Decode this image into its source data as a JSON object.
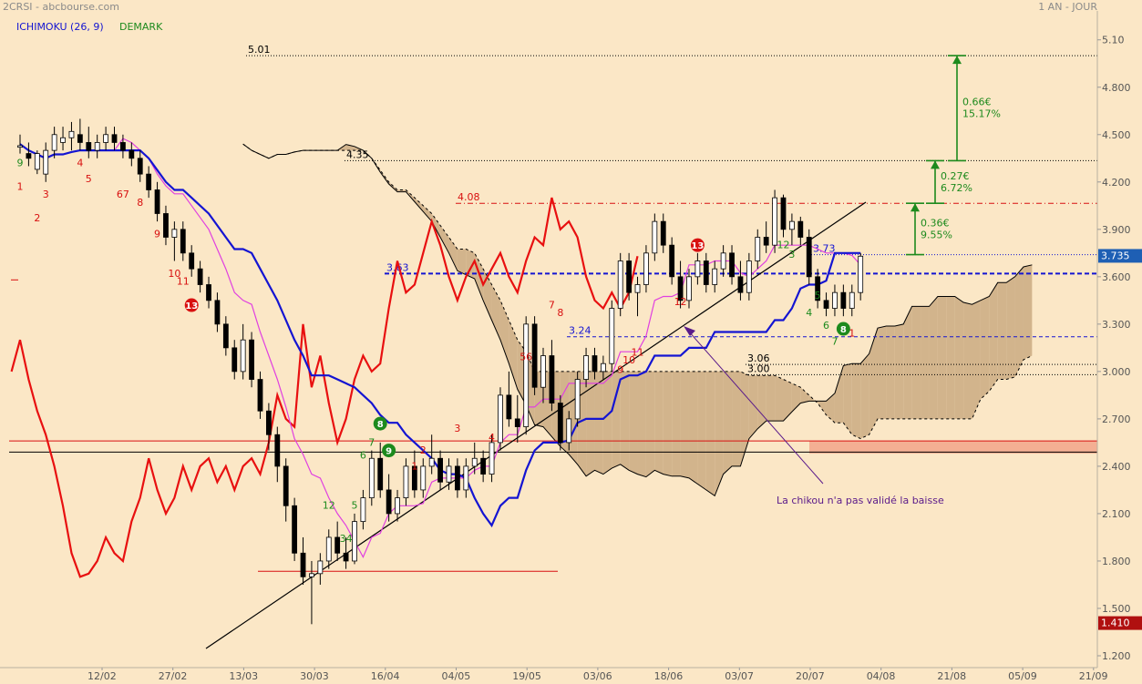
{
  "header": {
    "symbol": "2CRSI - abcbourse.com",
    "period": "1 AN - JOUR"
  },
  "indicators": {
    "ichimoku": "ICHIMOKU (26, 9)",
    "demark": "DEMARK"
  },
  "colors": {
    "background": "#fbe7c6",
    "cloud": "#d2b48c",
    "tenkan": "#e040e0",
    "kijun": "#1414d2",
    "chikou": "#e81010",
    "demark_buy": "#1d8a1d",
    "demark_sell": "#d81010",
    "last_price_tag": "#1e5fb4",
    "low_price_tag": "#b01010",
    "resistance_zone": "#f3a88d"
  },
  "chart_data": {
    "type": "candlestick",
    "title": "2CRSI",
    "source": "abcbourse.com",
    "period": "1 AN - JOUR",
    "ylim": [
      1.2,
      5.25
    ],
    "y_ticks": [
      "5.10",
      "4.800",
      "4.500",
      "4.200",
      "3.900",
      "3.600",
      "3.300",
      "3.000",
      "2.700",
      "2.400",
      "2.100",
      "1.800",
      "1.500",
      "1.200"
    ],
    "x_ticks": [
      "12/02",
      "27/02",
      "13/03",
      "30/03",
      "16/04",
      "04/05",
      "19/05",
      "03/06",
      "18/06",
      "03/07",
      "20/07",
      "04/08",
      "21/08",
      "05/09",
      "21/09"
    ],
    "last_price": "3.735",
    "low_price": "1.410",
    "levels": [
      {
        "label": "5.01",
        "value": 5.0
      },
      {
        "label": "4.35",
        "value": 4.335
      },
      {
        "label": "4.08",
        "value": 4.065
      },
      {
        "label": "3.73",
        "value": 3.74
      },
      {
        "label": "3.63",
        "value": 3.62
      },
      {
        "label": "3.24",
        "value": 3.22
      },
      {
        "label": "3.06",
        "value": 3.045
      },
      {
        "label": "3.00",
        "value": 2.98
      }
    ],
    "targets": [
      {
        "amount": "0.36€",
        "percent": "9.55%",
        "from": 3.74,
        "to": 4.065
      },
      {
        "amount": "0.27€",
        "percent": "6.72%",
        "from": 4.065,
        "to": 4.335
      },
      {
        "amount": "0.66€",
        "percent": "15.17%",
        "from": 4.335,
        "to": 5.0
      }
    ],
    "annotation": "La chikou n'a pas validé la baisse",
    "ohlc": [
      [
        4.42,
        4.5,
        4.38,
        4.43
      ],
      [
        4.38,
        4.45,
        4.3,
        4.35
      ],
      [
        4.28,
        4.4,
        4.25,
        4.38
      ],
      [
        4.25,
        4.45,
        4.2,
        4.4
      ],
      [
        4.4,
        4.55,
        4.35,
        4.5
      ],
      [
        4.45,
        4.55,
        4.4,
        4.48
      ],
      [
        4.48,
        4.58,
        4.4,
        4.52
      ],
      [
        4.5,
        4.6,
        4.4,
        4.45
      ],
      [
        4.45,
        4.55,
        4.35,
        4.4
      ],
      [
        4.4,
        4.5,
        4.35,
        4.45
      ],
      [
        4.45,
        4.55,
        4.4,
        4.5
      ],
      [
        4.5,
        4.55,
        4.4,
        4.45
      ],
      [
        4.45,
        4.5,
        4.35,
        4.4
      ],
      [
        4.4,
        4.45,
        4.3,
        4.35
      ],
      [
        4.35,
        4.4,
        4.2,
        4.25
      ],
      [
        4.25,
        4.3,
        4.1,
        4.15
      ],
      [
        4.15,
        4.2,
        3.95,
        4.0
      ],
      [
        4.0,
        4.05,
        3.8,
        3.85
      ],
      [
        3.85,
        3.95,
        3.7,
        3.9
      ],
      [
        3.9,
        3.95,
        3.7,
        3.75
      ],
      [
        3.75,
        3.8,
        3.6,
        3.65
      ],
      [
        3.65,
        3.7,
        3.5,
        3.55
      ],
      [
        3.55,
        3.6,
        3.4,
        3.45
      ],
      [
        3.45,
        3.5,
        3.25,
        3.3
      ],
      [
        3.3,
        3.35,
        3.1,
        3.15
      ],
      [
        3.15,
        3.2,
        2.95,
        3.0
      ],
      [
        3.0,
        3.3,
        2.95,
        3.2
      ],
      [
        3.2,
        3.25,
        2.9,
        2.95
      ],
      [
        2.95,
        3.0,
        2.7,
        2.75
      ],
      [
        2.75,
        2.8,
        2.5,
        2.6
      ],
      [
        2.6,
        2.65,
        2.3,
        2.4
      ],
      [
        2.4,
        2.45,
        2.05,
        2.15
      ],
      [
        2.15,
        2.2,
        1.8,
        1.85
      ],
      [
        1.85,
        1.95,
        1.65,
        1.7
      ],
      [
        1.7,
        1.8,
        1.4,
        1.72
      ],
      [
        1.72,
        1.85,
        1.65,
        1.8
      ],
      [
        1.8,
        2.0,
        1.75,
        1.95
      ],
      [
        1.95,
        2.05,
        1.8,
        1.85
      ],
      [
        1.85,
        1.95,
        1.75,
        1.8
      ],
      [
        1.8,
        2.1,
        1.78,
        2.05
      ],
      [
        2.05,
        2.25,
        2.0,
        2.2
      ],
      [
        2.2,
        2.5,
        2.15,
        2.45
      ],
      [
        2.45,
        2.55,
        2.2,
        2.25
      ],
      [
        2.25,
        2.35,
        2.05,
        2.1
      ],
      [
        2.1,
        2.25,
        2.05,
        2.2
      ],
      [
        2.2,
        2.45,
        2.15,
        2.4
      ],
      [
        2.4,
        2.5,
        2.2,
        2.25
      ],
      [
        2.25,
        2.45,
        2.2,
        2.4
      ],
      [
        2.4,
        2.6,
        2.35,
        2.45
      ],
      [
        2.45,
        2.5,
        2.25,
        2.3
      ],
      [
        2.3,
        2.45,
        2.25,
        2.4
      ],
      [
        2.4,
        2.45,
        2.2,
        2.25
      ],
      [
        2.25,
        2.45,
        2.2,
        2.4
      ],
      [
        2.4,
        2.55,
        2.35,
        2.45
      ],
      [
        2.45,
        2.5,
        2.3,
        2.35
      ],
      [
        2.35,
        2.6,
        2.3,
        2.55
      ],
      [
        2.55,
        2.9,
        2.5,
        2.85
      ],
      [
        2.85,
        3.0,
        2.65,
        2.7
      ],
      [
        2.7,
        2.85,
        2.55,
        2.65
      ],
      [
        2.65,
        3.35,
        2.6,
        3.3
      ],
      [
        3.3,
        3.35,
        2.85,
        2.9
      ],
      [
        2.9,
        3.15,
        2.8,
        3.1
      ],
      [
        3.1,
        3.2,
        2.75,
        2.8
      ],
      [
        2.8,
        2.85,
        2.5,
        2.55
      ],
      [
        2.55,
        2.75,
        2.5,
        2.7
      ],
      [
        2.7,
        3.0,
        2.65,
        2.95
      ],
      [
        2.95,
        3.15,
        2.9,
        3.1
      ],
      [
        3.1,
        3.15,
        2.95,
        3.0
      ],
      [
        3.0,
        3.1,
        2.95,
        3.05
      ],
      [
        3.05,
        3.45,
        3.0,
        3.4
      ],
      [
        3.4,
        3.75,
        3.35,
        3.7
      ],
      [
        3.7,
        3.75,
        3.45,
        3.5
      ],
      [
        3.5,
        3.6,
        3.35,
        3.55
      ],
      [
        3.55,
        3.8,
        3.5,
        3.75
      ],
      [
        3.75,
        4.0,
        3.7,
        3.95
      ],
      [
        3.95,
        4.0,
        3.75,
        3.8
      ],
      [
        3.8,
        3.85,
        3.55,
        3.6
      ],
      [
        3.6,
        3.7,
        3.4,
        3.45
      ],
      [
        3.45,
        3.65,
        3.4,
        3.6
      ],
      [
        3.6,
        3.75,
        3.55,
        3.7
      ],
      [
        3.7,
        3.75,
        3.5,
        3.55
      ],
      [
        3.55,
        3.7,
        3.5,
        3.65
      ],
      [
        3.65,
        3.8,
        3.6,
        3.75
      ],
      [
        3.75,
        3.8,
        3.55,
        3.6
      ],
      [
        3.6,
        3.7,
        3.45,
        3.5
      ],
      [
        3.5,
        3.75,
        3.45,
        3.7
      ],
      [
        3.7,
        3.9,
        3.65,
        3.85
      ],
      [
        3.85,
        3.95,
        3.75,
        3.8
      ],
      [
        3.8,
        4.15,
        3.75,
        4.1
      ],
      [
        4.1,
        4.12,
        3.85,
        3.9
      ],
      [
        3.9,
        4.0,
        3.8,
        3.95
      ],
      [
        3.95,
        3.98,
        3.8,
        3.85
      ],
      [
        3.85,
        3.9,
        3.55,
        3.6
      ],
      [
        3.6,
        3.65,
        3.4,
        3.45
      ],
      [
        3.45,
        3.5,
        3.35,
        3.4
      ],
      [
        3.4,
        3.55,
        3.35,
        3.5
      ],
      [
        3.5,
        3.55,
        3.35,
        3.4
      ],
      [
        3.4,
        3.55,
        3.35,
        3.5
      ],
      [
        3.5,
        3.75,
        3.45,
        3.73
      ]
    ],
    "demark_labels": [
      {
        "text": "9",
        "color": "buy",
        "i": 0,
        "y": 4.3
      },
      {
        "text": "1",
        "color": "sell",
        "i": 0,
        "y": 4.15
      },
      {
        "text": "2",
        "color": "sell",
        "i": 2,
        "y": 3.95
      },
      {
        "text": "3",
        "color": "sell",
        "i": 3,
        "y": 4.1
      },
      {
        "text": "4",
        "color": "sell",
        "i": 7,
        "y": 4.3
      },
      {
        "text": "5",
        "color": "sell",
        "i": 8,
        "y": 4.2
      },
      {
        "text": "67",
        "color": "sell",
        "i": 12,
        "y": 4.1
      },
      {
        "text": "8",
        "color": "sell",
        "i": 14,
        "y": 4.05
      },
      {
        "text": "9",
        "color": "sell",
        "i": 16,
        "y": 3.85
      },
      {
        "text": "10",
        "color": "sell",
        "i": 18,
        "y": 3.6
      },
      {
        "text": "11",
        "color": "sell",
        "i": 19,
        "y": 3.55
      },
      {
        "text": "12",
        "color": "buy",
        "i": 36,
        "y": 2.13
      },
      {
        "text": "34",
        "color": "buy",
        "i": 38,
        "y": 1.92
      },
      {
        "text": "5",
        "color": "buy",
        "i": 39,
        "y": 2.13
      },
      {
        "text": "6",
        "color": "buy",
        "i": 40,
        "y": 2.45
      },
      {
        "text": "7",
        "color": "buy",
        "i": 41,
        "y": 2.53
      },
      {
        "text": "1",
        "color": "sell",
        "i": 46,
        "y": 2.38
      },
      {
        "text": "2",
        "color": "sell",
        "i": 47,
        "y": 2.48
      },
      {
        "text": "3",
        "color": "sell",
        "i": 51,
        "y": 2.62
      },
      {
        "text": "4",
        "color": "sell",
        "i": 55,
        "y": 2.56
      },
      {
        "text": "56",
        "color": "sell",
        "i": 59,
        "y": 3.07
      },
      {
        "text": "7",
        "color": "sell",
        "i": 62,
        "y": 3.4
      },
      {
        "text": "8",
        "color": "sell",
        "i": 63,
        "y": 3.35
      },
      {
        "text": "9",
        "color": "sell",
        "i": 70,
        "y": 2.99
      },
      {
        "text": "10",
        "color": "sell",
        "i": 71,
        "y": 3.05
      },
      {
        "text": "11",
        "color": "sell",
        "i": 72,
        "y": 3.1
      },
      {
        "text": "12",
        "color": "sell",
        "i": 77,
        "y": 3.42
      },
      {
        "text": "12",
        "color": "buy",
        "i": 89,
        "y": 3.78
      },
      {
        "text": "3",
        "color": "buy",
        "i": 90,
        "y": 3.72
      },
      {
        "text": "5",
        "color": "buy",
        "i": 93,
        "y": 3.46
      },
      {
        "text": "4",
        "color": "buy",
        "i": 92,
        "y": 3.35
      },
      {
        "text": "6",
        "color": "buy",
        "i": 94,
        "y": 3.27
      },
      {
        "text": "7",
        "color": "buy",
        "i": 95,
        "y": 3.17
      },
      {
        "text": "1",
        "color": "sell",
        "i": 97,
        "y": 3.22
      }
    ],
    "demark_circles": [
      {
        "text": "13",
        "color": "sell",
        "i": 20,
        "y": 3.42
      },
      {
        "text": "8",
        "color": "buy",
        "i": 42,
        "y": 2.67
      },
      {
        "text": "9",
        "color": "buy",
        "i": 43,
        "y": 2.5
      },
      {
        "text": "13",
        "color": "sell",
        "i": 79,
        "y": 3.8
      },
      {
        "text": "8",
        "color": "buy",
        "i": 96,
        "y": 3.27
      }
    ]
  }
}
